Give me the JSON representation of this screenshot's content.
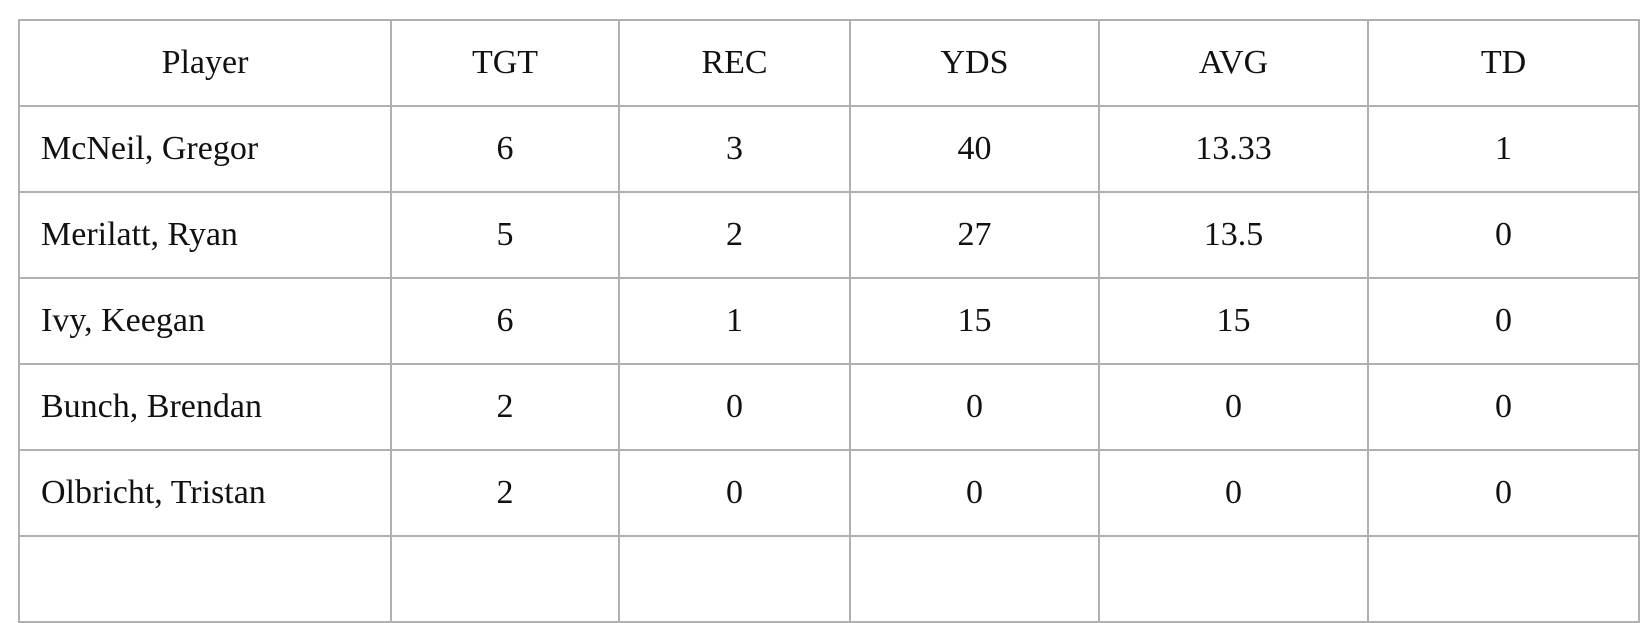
{
  "table": {
    "header": [
      "Player",
      "TGT",
      "REC",
      "YDS",
      "AVG",
      "TD"
    ],
    "rows": [
      [
        "McNeil, Gregor",
        "6",
        "3",
        "40",
        "13.33",
        "1"
      ],
      [
        "Merilatt, Ryan",
        "5",
        "2",
        "27",
        "13.5",
        "0"
      ],
      [
        "Ivy, Keegan",
        "6",
        "1",
        "15",
        "15",
        "0"
      ],
      [
        "Bunch, Brendan",
        "2",
        "0",
        "0",
        "0",
        "0"
      ],
      [
        "Olbricht, Tristan",
        "2",
        "0",
        "0",
        "0",
        "0"
      ]
    ]
  }
}
